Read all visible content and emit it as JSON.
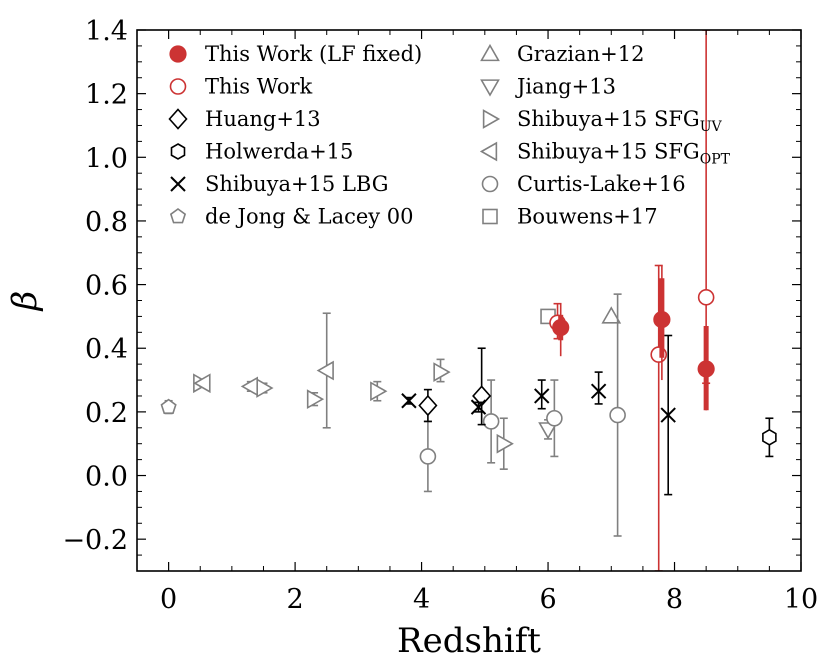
{
  "chart_data": {
    "type": "scatter",
    "title": "",
    "xlabel": "Redshift",
    "ylabel": "β",
    "xlim": [
      -0.5,
      10
    ],
    "ylim": [
      -0.3,
      1.4
    ],
    "xticks": [
      0,
      2,
      4,
      6,
      8,
      10
    ],
    "xtick_labels": [
      "0",
      "2",
      "4",
      "6",
      "8",
      "10"
    ],
    "yticks": [
      -0.2,
      0.0,
      0.2,
      0.4,
      0.6,
      0.8,
      1.0,
      1.2,
      1.4
    ],
    "ytick_labels": [
      "−0.2",
      "0.0",
      "0.2",
      "0.4",
      "0.6",
      "0.8",
      "1.0",
      "1.2",
      "1.4"
    ],
    "colors": {
      "red": "#cc3333",
      "gray": "#808080",
      "black": "#000000"
    },
    "series": [
      {
        "name": "This Work (LF fixed)",
        "marker": "circle-filled",
        "color": "#cc3333",
        "points": [
          {
            "x": 6.2,
            "y": 0.465,
            "err_lo": 0.09,
            "err_hi": 0.075,
            "thick_lo": 0.04,
            "thick_hi": 0.04
          },
          {
            "x": 7.8,
            "y": 0.49,
            "err_lo": 0.19,
            "err_hi": 0.17,
            "thick_lo": 0.12,
            "thick_hi": 0.13
          },
          {
            "x": 8.5,
            "y": 0.335,
            "err_lo": 0.13,
            "err_hi": 0.135,
            "thick_lo": 0.13,
            "thick_hi": 0.135
          }
        ]
      },
      {
        "name": "This Work",
        "marker": "circle-open",
        "color": "#cc3333",
        "points": [
          {
            "x": 6.15,
            "y": 0.48,
            "err_lo": 0.05,
            "err_hi": 0.06
          },
          {
            "x": 7.75,
            "y": 0.38,
            "err_lo": 0.68,
            "err_hi": 0.28
          },
          {
            "x": 8.5,
            "y": 0.56,
            "err_lo": 0.27,
            "err_hi": 0.84
          }
        ]
      },
      {
        "name": "Huang+13",
        "marker": "diamond",
        "color": "#000000",
        "points": [
          {
            "x": 4.1,
            "y": 0.22,
            "err_lo": 0.05,
            "err_hi": 0.05
          },
          {
            "x": 4.95,
            "y": 0.25,
            "err_lo": 0.09,
            "err_hi": 0.15
          }
        ]
      },
      {
        "name": "Holwerda+15",
        "marker": "hexagon",
        "color": "#000000",
        "points": [
          {
            "x": 9.5,
            "y": 0.12,
            "err_lo": 0.06,
            "err_hi": 0.06
          }
        ]
      },
      {
        "name": "Shibuya+15 LBG",
        "marker": "x",
        "color": "#000000",
        "points": [
          {
            "x": 3.8,
            "y": 0.235,
            "err_lo": 0.01,
            "err_hi": 0.01
          },
          {
            "x": 4.9,
            "y": 0.215,
            "err_lo": 0.015,
            "err_hi": 0.015
          },
          {
            "x": 5.9,
            "y": 0.25,
            "err_lo": 0.04,
            "err_hi": 0.05
          },
          {
            "x": 6.8,
            "y": 0.265,
            "err_lo": 0.04,
            "err_hi": 0.06
          },
          {
            "x": 7.9,
            "y": 0.19,
            "err_lo": 0.25,
            "err_hi": 0.25
          }
        ]
      },
      {
        "name": "de Jong & Lacey 00",
        "marker": "pentagon",
        "color": "#808080",
        "points": [
          {
            "x": 0.0,
            "y": 0.215,
            "err_lo": 0.02,
            "err_hi": 0.02
          }
        ]
      },
      {
        "name": "Grazian+12",
        "marker": "triangle-up",
        "color": "#808080",
        "points": [
          {
            "x": 7.0,
            "y": 0.5,
            "err_lo": 0.0,
            "err_hi": 0.0
          }
        ]
      },
      {
        "name": "Jiang+13",
        "marker": "triangle-down",
        "color": "#808080",
        "points": [
          {
            "x": 6.0,
            "y": 0.145,
            "err_lo": 0.03,
            "err_hi": 0.03
          }
        ]
      },
      {
        "name": "Shibuya+15 SFG_UV",
        "marker": "triangle-right",
        "color": "#808080",
        "points": [
          {
            "x": 0.5,
            "y": 0.29,
            "err_lo": 0.01,
            "err_hi": 0.01
          },
          {
            "x": 1.5,
            "y": 0.275,
            "err_lo": 0.015,
            "err_hi": 0.015
          },
          {
            "x": 2.3,
            "y": 0.24,
            "err_lo": 0.02,
            "err_hi": 0.02
          },
          {
            "x": 3.3,
            "y": 0.265,
            "err_lo": 0.03,
            "err_hi": 0.03
          },
          {
            "x": 4.3,
            "y": 0.325,
            "err_lo": 0.03,
            "err_hi": 0.04
          },
          {
            "x": 5.3,
            "y": 0.1,
            "err_lo": 0.08,
            "err_hi": 0.08
          }
        ]
      },
      {
        "name": "Shibuya+15 SFG_OPT",
        "marker": "triangle-left",
        "color": "#808080",
        "points": [
          {
            "x": 0.55,
            "y": 0.29,
            "err_lo": 0.01,
            "err_hi": 0.01
          },
          {
            "x": 1.3,
            "y": 0.28,
            "err_lo": 0.015,
            "err_hi": 0.015
          },
          {
            "x": 2.5,
            "y": 0.33,
            "err_lo": 0.18,
            "err_hi": 0.18
          }
        ]
      },
      {
        "name": "Curtis-Lake+16",
        "marker": "circle-open",
        "color": "#808080",
        "points": [
          {
            "x": 4.1,
            "y": 0.06,
            "err_lo": 0.11,
            "err_hi": 0.11
          },
          {
            "x": 5.1,
            "y": 0.17,
            "err_lo": 0.13,
            "err_hi": 0.13
          },
          {
            "x": 6.1,
            "y": 0.18,
            "err_lo": 0.12,
            "err_hi": 0.12
          },
          {
            "x": 7.1,
            "y": 0.19,
            "err_lo": 0.38,
            "err_hi": 0.38
          }
        ]
      },
      {
        "name": "Bouwens+17",
        "marker": "square",
        "color": "#808080",
        "points": [
          {
            "x": 6.0,
            "y": 0.5,
            "err_lo": 0.0,
            "err_hi": 0.0
          }
        ]
      }
    ],
    "legend": {
      "placement": "top",
      "columns": [
        [
          {
            "label": "This Work (LF fixed)",
            "marker": "circle-filled",
            "color": "#cc3333"
          },
          {
            "label": "This Work",
            "marker": "circle-open",
            "color": "#cc3333"
          },
          {
            "label": "Huang+13",
            "marker": "diamond",
            "color": "#000000"
          },
          {
            "label": "Holwerda+15",
            "marker": "hexagon",
            "color": "#000000"
          },
          {
            "label": "Shibuya+15 LBG",
            "marker": "x",
            "color": "#000000"
          },
          {
            "label": "de Jong & Lacey 00",
            "marker": "pentagon",
            "color": "#808080"
          }
        ],
        [
          {
            "label": "Grazian+12",
            "marker": "triangle-up",
            "color": "#808080"
          },
          {
            "label": "Jiang+13",
            "marker": "triangle-down",
            "color": "#808080"
          },
          {
            "label": "Shibuya+15 SFG",
            "sub": "UV",
            "marker": "triangle-right",
            "color": "#808080"
          },
          {
            "label": "Shibuya+15 SFG",
            "sub": "OPT",
            "marker": "triangle-left",
            "color": "#808080"
          },
          {
            "label": "Curtis-Lake+16",
            "marker": "circle-open",
            "color": "#808080"
          },
          {
            "label": "Bouwens+17",
            "marker": "square",
            "color": "#808080"
          }
        ]
      ]
    }
  }
}
